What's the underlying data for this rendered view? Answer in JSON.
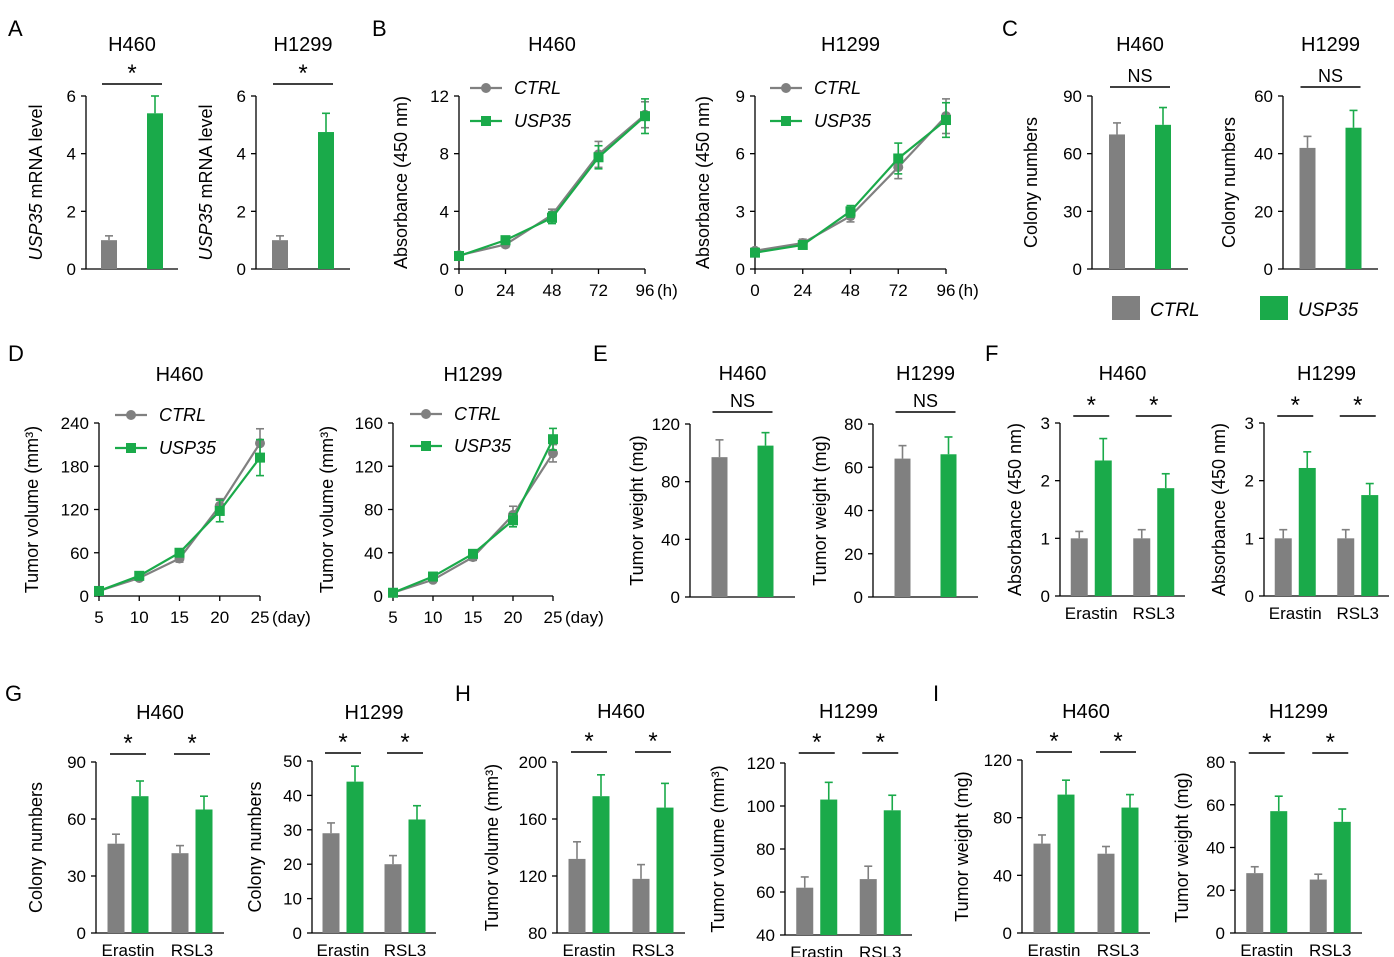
{
  "colors": {
    "ctrl": "#808080",
    "usp35": "#1aaa4a",
    "axis": "#000000",
    "text": "#000000"
  },
  "legend": {
    "ctrl": "CTRL",
    "usp35": "USP35"
  },
  "chart_data": [
    {
      "panel": "A",
      "id": "A1",
      "type": "bar",
      "title": "H460",
      "ylabel": "USP35 mRNA level",
      "ylabel_italic": "USP35",
      "ylabel_rest": " mRNA level",
      "ylim": [
        0,
        6
      ],
      "yticks": [
        0,
        2,
        4,
        6
      ],
      "categories": [
        ""
      ],
      "series": [
        {
          "name": "CTRL",
          "values": [
            1.0
          ],
          "errors": [
            0.15
          ]
        },
        {
          "name": "USP35",
          "values": [
            5.4
          ],
          "errors": [
            0.6
          ]
        }
      ],
      "sig": [
        {
          "label": "*",
          "group": "all"
        }
      ]
    },
    {
      "panel": "",
      "id": "A2",
      "type": "bar",
      "title": "H1299",
      "ylabel": "USP35 mRNA level",
      "ylabel_italic": "USP35",
      "ylabel_rest": " mRNA level",
      "ylim": [
        0,
        6
      ],
      "yticks": [
        0,
        2,
        4,
        6
      ],
      "categories": [
        ""
      ],
      "series": [
        {
          "name": "CTRL",
          "values": [
            1.0
          ],
          "errors": [
            0.15
          ]
        },
        {
          "name": "USP35",
          "values": [
            4.75
          ],
          "errors": [
            0.65
          ]
        }
      ],
      "sig": [
        {
          "label": "*",
          "group": "all"
        }
      ]
    },
    {
      "panel": "B",
      "id": "B1",
      "type": "line",
      "title": "H460",
      "ylabel": "Absorbance (450 nm)",
      "ylim": [
        0,
        12
      ],
      "yticks": [
        0,
        4,
        8,
        12
      ],
      "x": [
        0,
        24,
        48,
        72,
        96
      ],
      "xlim": [
        0,
        96
      ],
      "xunit": "(h)",
      "series": [
        {
          "name": "CTRL",
          "values": [
            0.95,
            1.7,
            3.75,
            7.95,
            10.7
          ],
          "errors": [
            0.1,
            0.2,
            0.4,
            0.9,
            0.9
          ]
        },
        {
          "name": "USP35",
          "values": [
            0.9,
            2.0,
            3.55,
            7.75,
            10.6
          ],
          "errors": [
            0.1,
            0.2,
            0.4,
            0.8,
            1.2
          ]
        }
      ]
    },
    {
      "panel": "",
      "id": "B2",
      "type": "line",
      "title": "H1299",
      "ylabel": "Absorbance (450 nm)",
      "ylim": [
        0,
        9
      ],
      "yticks": [
        0,
        3,
        6,
        9
      ],
      "x": [
        0,
        24,
        48,
        72,
        96
      ],
      "xlim": [
        0,
        96
      ],
      "xunit": "(h)",
      "series": [
        {
          "name": "CTRL",
          "values": [
            0.95,
            1.35,
            2.75,
            5.3,
            7.95
          ],
          "errors": [
            0.1,
            0.2,
            0.3,
            0.6,
            0.9
          ]
        },
        {
          "name": "USP35",
          "values": [
            0.85,
            1.25,
            3.0,
            5.75,
            7.75
          ],
          "errors": [
            0.1,
            0.15,
            0.3,
            0.8,
            0.9
          ]
        }
      ]
    },
    {
      "panel": "C",
      "id": "C1",
      "type": "bar",
      "title": "H460",
      "ylabel": "Colony numbers",
      "ylim": [
        0,
        90
      ],
      "yticks": [
        0,
        30,
        60,
        90
      ],
      "categories": [
        ""
      ],
      "series": [
        {
          "name": "CTRL",
          "values": [
            70
          ],
          "errors": [
            6
          ]
        },
        {
          "name": "USP35",
          "values": [
            75
          ],
          "errors": [
            9
          ]
        }
      ],
      "sig": [
        {
          "label": "NS",
          "group": "all"
        }
      ]
    },
    {
      "panel": "",
      "id": "C2",
      "type": "bar",
      "title": "H1299",
      "ylabel": "Colony numbers",
      "ylim": [
        0,
        60
      ],
      "yticks": [
        0,
        20,
        40,
        60
      ],
      "categories": [
        ""
      ],
      "series": [
        {
          "name": "CTRL",
          "values": [
            42
          ],
          "errors": [
            4
          ]
        },
        {
          "name": "USP35",
          "values": [
            49
          ],
          "errors": [
            6
          ]
        }
      ],
      "sig": [
        {
          "label": "NS",
          "group": "all"
        }
      ]
    },
    {
      "panel": "D",
      "id": "D1",
      "type": "line",
      "title": "H460",
      "ylabel": "Tumor volume (mm³)",
      "ylim": [
        0,
        240
      ],
      "yticks": [
        0,
        60,
        120,
        180,
        240
      ],
      "x": [
        5,
        10,
        15,
        20,
        25
      ],
      "xlim": [
        5,
        25
      ],
      "xunit": "(day)",
      "series": [
        {
          "name": "CTRL",
          "values": [
            7,
            25,
            52,
            125,
            212
          ],
          "errors": [
            2,
            3,
            5,
            10,
            20
          ]
        },
        {
          "name": "USP35",
          "values": [
            7,
            28,
            60,
            118,
            192
          ],
          "errors": [
            2,
            3,
            5,
            15,
            25
          ]
        }
      ]
    },
    {
      "panel": "",
      "id": "D2",
      "type": "line",
      "title": "H1299",
      "ylabel": "Tumor volume (mm³)",
      "ylim": [
        0,
        160
      ],
      "yticks": [
        0,
        40,
        80,
        120,
        160
      ],
      "x": [
        5,
        10,
        15,
        20,
        25
      ],
      "xlim": [
        5,
        25
      ],
      "xunit": "(day)",
      "series": [
        {
          "name": "CTRL",
          "values": [
            3,
            15,
            36,
            75,
            132
          ],
          "errors": [
            1,
            2,
            3,
            8,
            8
          ]
        },
        {
          "name": "USP35",
          "values": [
            3,
            18,
            39,
            70,
            145
          ],
          "errors": [
            1,
            2,
            3,
            6,
            10
          ]
        }
      ]
    },
    {
      "panel": "E",
      "id": "E1",
      "type": "bar",
      "title": "H460",
      "ylabel": "Tumor weight (mg)",
      "ylim": [
        0,
        120
      ],
      "yticks": [
        0,
        40,
        80,
        120
      ],
      "categories": [
        ""
      ],
      "series": [
        {
          "name": "CTRL",
          "values": [
            97
          ],
          "errors": [
            12
          ]
        },
        {
          "name": "USP35",
          "values": [
            105
          ],
          "errors": [
            9
          ]
        }
      ],
      "sig": [
        {
          "label": "NS",
          "group": "all"
        }
      ]
    },
    {
      "panel": "",
      "id": "E2",
      "type": "bar",
      "title": "H1299",
      "ylabel": "Tumor weight (mg)",
      "ylim": [
        0,
        80
      ],
      "yticks": [
        0,
        20,
        40,
        60,
        80
      ],
      "categories": [
        ""
      ],
      "series": [
        {
          "name": "CTRL",
          "values": [
            64
          ],
          "errors": [
            6
          ]
        },
        {
          "name": "USP35",
          "values": [
            66
          ],
          "errors": [
            8
          ]
        }
      ],
      "sig": [
        {
          "label": "NS",
          "group": "all"
        }
      ]
    },
    {
      "panel": "F",
      "id": "F1",
      "type": "bar",
      "title": "H460",
      "ylabel": "Absorbance (450 nm)",
      "ylim": [
        0,
        3
      ],
      "yticks": [
        0,
        1,
        2,
        3
      ],
      "categories": [
        "Erastin",
        "RSL3"
      ],
      "series": [
        {
          "name": "CTRL",
          "values": [
            1.0,
            1.0
          ],
          "errors": [
            0.12,
            0.15
          ]
        },
        {
          "name": "USP35",
          "values": [
            2.35,
            1.87
          ],
          "errors": [
            0.38,
            0.25
          ]
        }
      ],
      "sig": [
        {
          "label": "*",
          "group": 0
        },
        {
          "label": "*",
          "group": 1
        }
      ]
    },
    {
      "panel": "",
      "id": "F2",
      "type": "bar",
      "title": "H1299",
      "ylabel": "Absorbance (450 nm)",
      "ylim": [
        0,
        3
      ],
      "yticks": [
        0,
        1,
        2,
        3
      ],
      "categories": [
        "Erastin",
        "RSL3"
      ],
      "series": [
        {
          "name": "CTRL",
          "values": [
            1.0,
            1.0
          ],
          "errors": [
            0.15,
            0.15
          ]
        },
        {
          "name": "USP35",
          "values": [
            2.22,
            1.75
          ],
          "errors": [
            0.28,
            0.2
          ]
        }
      ],
      "sig": [
        {
          "label": "*",
          "group": 0
        },
        {
          "label": "*",
          "group": 1
        }
      ]
    },
    {
      "panel": "G",
      "id": "G1",
      "type": "bar",
      "title": "H460",
      "ylabel": "Colony numbers",
      "ylim": [
        0,
        90
      ],
      "yticks": [
        0,
        30,
        60,
        90
      ],
      "categories": [
        "Erastin",
        "RSL3"
      ],
      "series": [
        {
          "name": "CTRL",
          "values": [
            47,
            42
          ],
          "errors": [
            5,
            4
          ]
        },
        {
          "name": "USP35",
          "values": [
            72,
            65
          ],
          "errors": [
            8,
            7
          ]
        }
      ],
      "sig": [
        {
          "label": "*",
          "group": 0
        },
        {
          "label": "*",
          "group": 1
        }
      ]
    },
    {
      "panel": "",
      "id": "G2",
      "type": "bar",
      "title": "H1299",
      "ylabel": "Colony numbers",
      "ylim": [
        0,
        50
      ],
      "yticks": [
        0,
        10,
        20,
        30,
        40,
        50
      ],
      "categories": [
        "Erastin",
        "RSL3"
      ],
      "series": [
        {
          "name": "CTRL",
          "values": [
            29,
            20
          ],
          "errors": [
            3,
            2.5
          ]
        },
        {
          "name": "USP35",
          "values": [
            44,
            33
          ],
          "errors": [
            4.5,
            4
          ]
        }
      ],
      "sig": [
        {
          "label": "*",
          "group": 0
        },
        {
          "label": "*",
          "group": 1
        }
      ]
    },
    {
      "panel": "H",
      "id": "H1",
      "type": "bar",
      "title": "H460",
      "ylabel": "Tumor volume (mm³)",
      "ylim": [
        80,
        200
      ],
      "yticks": [
        80,
        120,
        160,
        200
      ],
      "categories": [
        "Erastin",
        "RSL3"
      ],
      "series": [
        {
          "name": "CTRL",
          "values": [
            132,
            118
          ],
          "errors": [
            12,
            10
          ]
        },
        {
          "name": "USP35",
          "values": [
            176,
            168
          ],
          "errors": [
            15,
            17
          ]
        }
      ],
      "sig": [
        {
          "label": "*",
          "group": 0
        },
        {
          "label": "*",
          "group": 1
        }
      ]
    },
    {
      "panel": "",
      "id": "H2",
      "type": "bar",
      "title": "H1299",
      "ylabel": "Tumor volume (mm³)",
      "ylim": [
        40,
        120
      ],
      "yticks": [
        40,
        60,
        80,
        100,
        120
      ],
      "categories": [
        "Erastin",
        "RSL3"
      ],
      "series": [
        {
          "name": "CTRL",
          "values": [
            62,
            66
          ],
          "errors": [
            5,
            6
          ]
        },
        {
          "name": "USP35",
          "values": [
            103,
            98
          ],
          "errors": [
            8,
            7
          ]
        }
      ],
      "sig": [
        {
          "label": "*",
          "group": 0
        },
        {
          "label": "*",
          "group": 1
        }
      ]
    },
    {
      "panel": "I",
      "id": "I1",
      "type": "bar",
      "title": "H460",
      "ylabel": "Tumor weight (mg)",
      "ylim": [
        0,
        120
      ],
      "yticks": [
        0,
        40,
        80,
        120
      ],
      "categories": [
        "Erastin",
        "RSL3"
      ],
      "series": [
        {
          "name": "CTRL",
          "values": [
            62,
            55
          ],
          "errors": [
            6,
            5
          ]
        },
        {
          "name": "USP35",
          "values": [
            96,
            87
          ],
          "errors": [
            10,
            9
          ]
        }
      ],
      "sig": [
        {
          "label": "*",
          "group": 0
        },
        {
          "label": "*",
          "group": 1
        }
      ]
    },
    {
      "panel": "",
      "id": "I2",
      "type": "bar",
      "title": "H1299",
      "ylabel": "Tumor weight (mg)",
      "ylim": [
        0,
        80
      ],
      "yticks": [
        0,
        20,
        40,
        60,
        80
      ],
      "categories": [
        "Erastin",
        "RSL3"
      ],
      "series": [
        {
          "name": "CTRL",
          "values": [
            28,
            25
          ],
          "errors": [
            3,
            2.5
          ]
        },
        {
          "name": "USP35",
          "values": [
            57,
            52
          ],
          "errors": [
            7,
            6
          ]
        }
      ],
      "sig": [
        {
          "label": "*",
          "group": 0
        },
        {
          "label": "*",
          "group": 1
        }
      ]
    }
  ]
}
